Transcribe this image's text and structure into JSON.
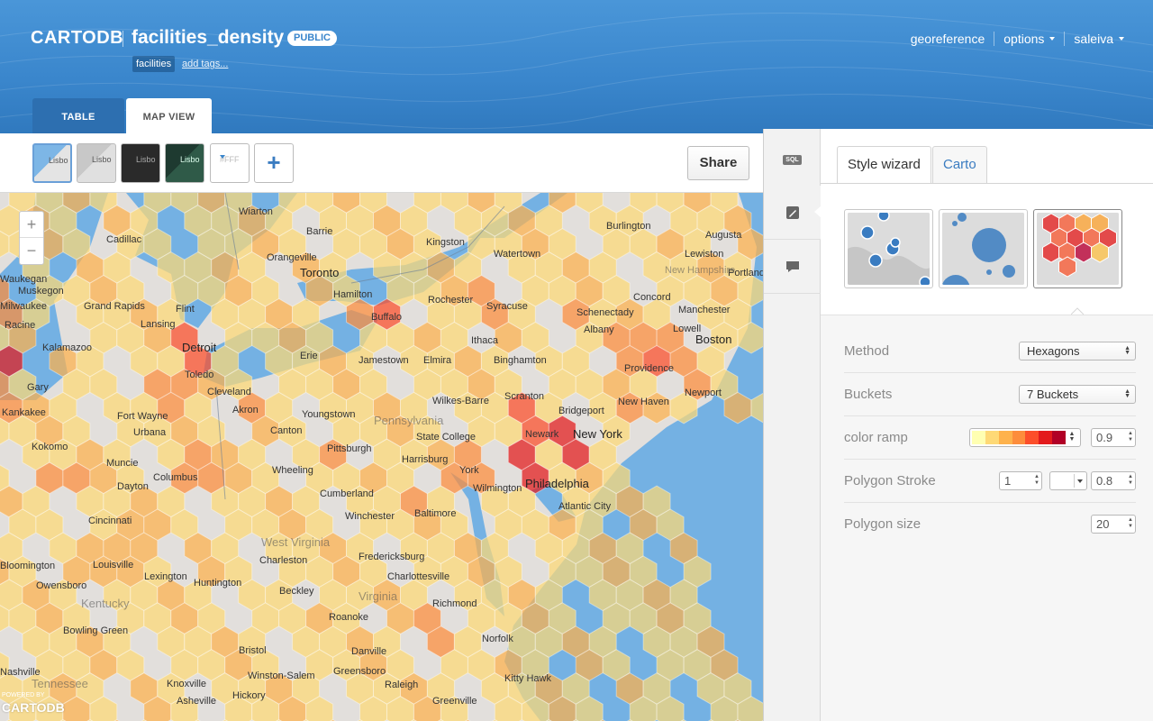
{
  "header": {
    "brand": "CARTODB",
    "table_name": "facilities_density",
    "visibility": "PUBLIC",
    "tag": "facilities",
    "add_tags": "add tags...",
    "nav": {
      "georeference": "georeference",
      "options": "options",
      "user": "saleiva"
    },
    "tabs": {
      "table": "TABLE",
      "map_view": "MAP VIEW"
    }
  },
  "toolbar": {
    "basemaps": [
      {
        "label": "Lisbo",
        "name": "light"
      },
      {
        "label": "Lisbo",
        "name": "gray"
      },
      {
        "label": "Lisbo",
        "name": "dark"
      },
      {
        "label": "Lisbo",
        "name": "satellite"
      }
    ],
    "custom_color": "#FFF",
    "add_basemap": "+",
    "share": "Share"
  },
  "map": {
    "zoom_in": "+",
    "zoom_out": "−",
    "powered": "POWERED BY",
    "logo": "CARTODB",
    "labels": [
      "Wiarton",
      "Barrie",
      "Kingston",
      "Cadillac",
      "Orangeville",
      "Toronto",
      "Watertown",
      "Hamilton",
      "Burlington",
      "Augusta",
      "Portland",
      "Muskegon",
      "Grand Rapids",
      "Flint",
      "Lansing",
      "Detroit",
      "Milwaukee",
      "Racine",
      "Kalamazoo",
      "Gary",
      "Toledo",
      "Erie",
      "Jamestown",
      "Elmira",
      "Syracuse",
      "Ithaca",
      "Rochester",
      "Buffalo",
      "Schenectady",
      "Albany",
      "Concord",
      "Manchester",
      "Lowell",
      "Boston",
      "Providence",
      "New Haven",
      "Newport",
      "Binghamton",
      "Scranton",
      "Wilkes-Barre",
      "Cleveland",
      "Akron",
      "Youngstown",
      "Fort Wayne",
      "Kankakee",
      "Canton",
      "Pennsylvania",
      "State College",
      "Bridgeport",
      "New York",
      "Newark",
      "Pittsburgh",
      "Harrisburg",
      "York",
      "Philadelphia",
      "Atlantic City",
      "Wilmington",
      "Baltimore",
      "Wheeling",
      "Columbus",
      "Dayton",
      "Muncie",
      "Kokomo",
      "Cumberland",
      "Winchester",
      "Cincinnati",
      "West Virginia",
      "Charleston",
      "Louisville",
      "Lexington",
      "Huntington",
      "Fredericksburg",
      "Charlottesville",
      "Richmond",
      "Norfolk",
      "Beckley",
      "Virginia",
      "Roanoke",
      "Owensboro",
      "Kentucky",
      "Bowling Green",
      "Bristol",
      "Danville",
      "Kitty Hawk",
      "Nashville",
      "Tennessee",
      "Knoxville",
      "Winston-Salem",
      "Greensboro",
      "Raleigh",
      "Hickory",
      "Asheville",
      "Greenville",
      "Bloomington",
      "Urbana",
      "Waukegan",
      "New Hampshire",
      "Lewiston"
    ]
  },
  "panel": {
    "tabs": {
      "wizard": "Style wizard",
      "carto": "Carto"
    },
    "side_icons": [
      "sql-icon",
      "paintbrush-icon",
      "comment-icon"
    ],
    "sql_label": "SQL",
    "viz_options": [
      "bubble-map",
      "intensity-map",
      "hexagon-density-map"
    ],
    "rows": {
      "method": {
        "label": "Method",
        "value": "Hexagons"
      },
      "buckets": {
        "label": "Buckets",
        "value": "7 Buckets"
      },
      "color_ramp": {
        "label": "color ramp",
        "opacity": "0.9",
        "colors": [
          "#ffffb2",
          "#fed976",
          "#feb24c",
          "#fd8d3c",
          "#fc4e2a",
          "#e31a1c",
          "#b10026"
        ]
      },
      "polygon_stroke": {
        "label": "Polygon Stroke",
        "width": "1",
        "opacity": "0.8"
      },
      "polygon_size": {
        "label": "Polygon size",
        "value": "20"
      }
    }
  },
  "colors": {
    "accent": "#3a86cc",
    "water": "#74b1e3",
    "land": "#e2dfdc"
  }
}
